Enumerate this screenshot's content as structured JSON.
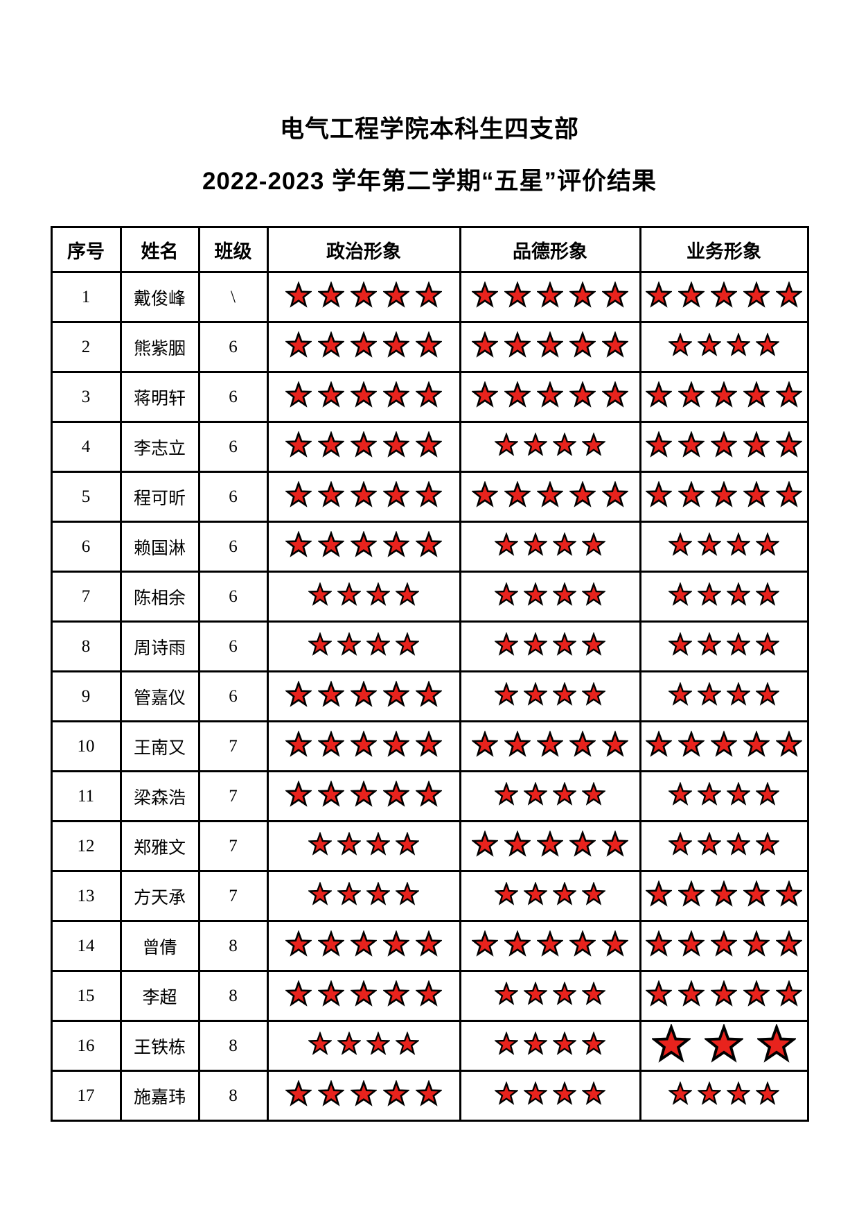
{
  "page": {
    "title": "电气工程学院本科生四支部",
    "subtitle": "2022-2023 学年第二学期“五星”评价结果"
  },
  "colors": {
    "star_fill": "#e8231d",
    "star_outline": "#000000",
    "table_border": "#000000",
    "text": "#000000",
    "background": "#ffffff"
  },
  "icons": {
    "star": "star-icon"
  },
  "table": {
    "columns": [
      {
        "key": "no",
        "label": "序号"
      },
      {
        "key": "name",
        "label": "姓名"
      },
      {
        "key": "class",
        "label": "班级"
      },
      {
        "key": "political",
        "label": "政治形象"
      },
      {
        "key": "moral",
        "label": "品德形象"
      },
      {
        "key": "business",
        "label": "业务形象"
      }
    ],
    "rows": [
      {
        "no": "1",
        "name": "戴俊峰",
        "class": "\\",
        "political": 5,
        "moral": 5,
        "business": 5
      },
      {
        "no": "2",
        "name": "熊紫胭",
        "class": "6",
        "political": 5,
        "moral": 5,
        "business": 4
      },
      {
        "no": "3",
        "name": "蒋明轩",
        "class": "6",
        "political": 5,
        "moral": 5,
        "business": 5
      },
      {
        "no": "4",
        "name": "李志立",
        "class": "6",
        "political": 5,
        "moral": 4,
        "business": 5
      },
      {
        "no": "5",
        "name": "程可昕",
        "class": "6",
        "political": 5,
        "moral": 5,
        "business": 5
      },
      {
        "no": "6",
        "name": "赖国淋",
        "class": "6",
        "political": 5,
        "moral": 4,
        "business": 4
      },
      {
        "no": "7",
        "name": "陈相余",
        "class": "6",
        "political": 4,
        "moral": 4,
        "business": 4
      },
      {
        "no": "8",
        "name": "周诗雨",
        "class": "6",
        "political": 4,
        "moral": 4,
        "business": 4
      },
      {
        "no": "9",
        "name": "管嘉仪",
        "class": "6",
        "political": 5,
        "moral": 4,
        "business": 4
      },
      {
        "no": "10",
        "name": "王南又",
        "class": "7",
        "political": 5,
        "moral": 5,
        "business": 5
      },
      {
        "no": "11",
        "name": "梁森浩",
        "class": "7",
        "political": 5,
        "moral": 4,
        "business": 4
      },
      {
        "no": "12",
        "name": "郑雅文",
        "class": "7",
        "political": 4,
        "moral": 5,
        "business": 4
      },
      {
        "no": "13",
        "name": "方天承",
        "class": "7",
        "political": 4,
        "moral": 4,
        "business": 5
      },
      {
        "no": "14",
        "name": "曾倩",
        "class": "8",
        "political": 5,
        "moral": 5,
        "business": 5
      },
      {
        "no": "15",
        "name": "李超",
        "class": "8",
        "political": 5,
        "moral": 4,
        "business": 5
      },
      {
        "no": "16",
        "name": "王铁栋",
        "class": "8",
        "political": 4,
        "moral": 4,
        "business": 3,
        "business_large": true
      },
      {
        "no": "17",
        "name": "施嘉玮",
        "class": "8",
        "political": 5,
        "moral": 4,
        "business": 4
      }
    ]
  }
}
